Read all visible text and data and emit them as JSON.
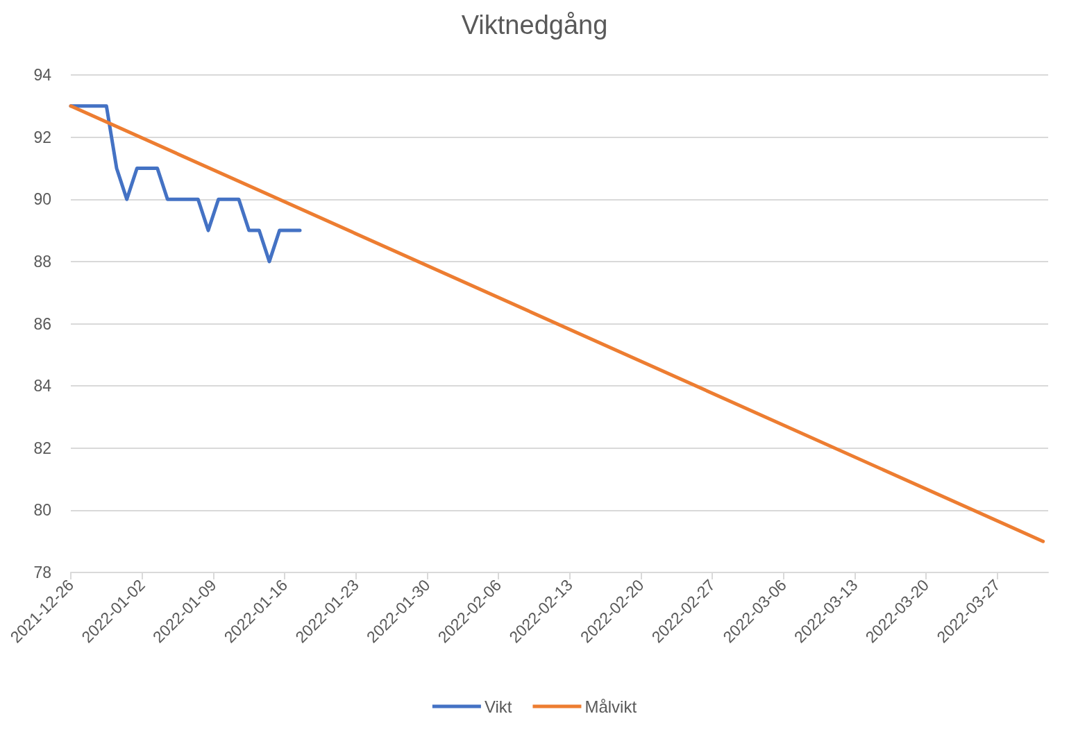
{
  "chart_data": {
    "type": "line",
    "title": "Viktnedgång",
    "series": [
      {
        "name": "Vikt",
        "color": "#4472c4",
        "x": [
          "2021-12-26T00:00",
          "2021-12-29T12:00",
          "2021-12-30T12:00",
          "2021-12-31T12:00",
          "2022-01-01T12:00",
          "2022-01-03T12:00",
          "2022-01-04T12:00",
          "2022-01-07T12:00",
          "2022-01-08T12:00",
          "2022-01-09T12:00",
          "2022-01-11T12:00",
          "2022-01-12T12:00",
          "2022-01-13T12:00",
          "2022-01-14T12:00",
          "2022-01-15T12:00",
          "2022-01-17T12:00"
        ],
        "values": [
          93,
          93,
          91,
          90,
          91,
          91,
          90,
          90,
          89,
          90,
          90,
          89,
          89,
          88,
          89,
          89
        ]
      },
      {
        "name": "Målvikt",
        "color": "#ed7d31",
        "x": [
          "2021-12-26T00:00",
          "2022-03-31T12:00"
        ],
        "values": [
          93,
          79
        ]
      }
    ],
    "xlim": [
      "2021-12-26",
      "2022-04-01"
    ],
    "xticks": [
      "2021-12-26",
      "2022-01-02",
      "2022-01-09",
      "2022-01-16",
      "2022-01-23",
      "2022-01-30",
      "2022-02-06",
      "2022-02-13",
      "2022-02-20",
      "2022-02-27",
      "2022-03-06",
      "2022-03-13",
      "2022-03-20",
      "2022-03-27"
    ],
    "ylim": [
      78,
      94
    ],
    "yticks": [
      78,
      80,
      82,
      84,
      86,
      88,
      90,
      92,
      94
    ],
    "grid": "y",
    "legend": "bottom",
    "marker": "none",
    "line_style": "solid"
  }
}
